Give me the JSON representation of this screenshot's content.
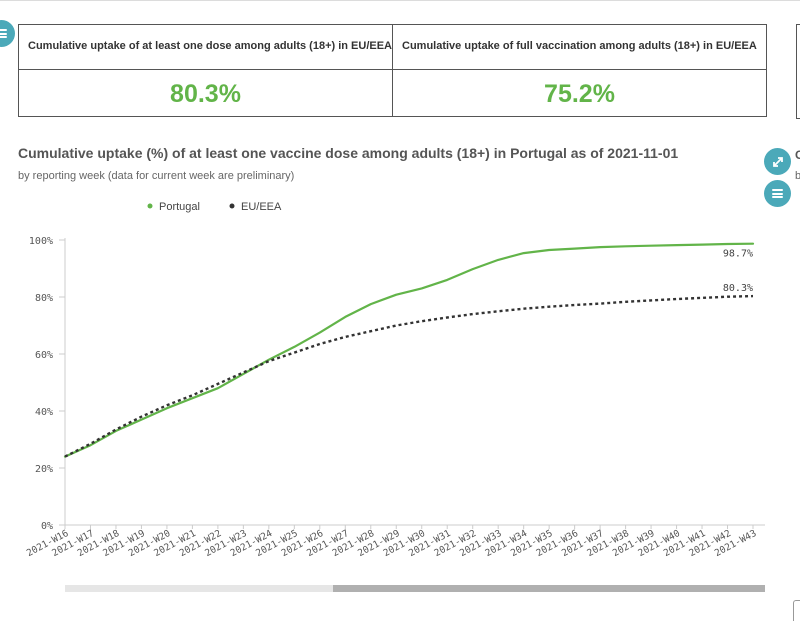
{
  "kpis": [
    {
      "label": "Cumulative uptake of at least one dose among adults (18+) in EU/EEA",
      "value": "80.3%"
    },
    {
      "label": "Cumulative uptake of full vaccination among adults (18+) in EU/EEA",
      "value": "75.2%"
    }
  ],
  "side_panel": {
    "title_fragment": "C",
    "subtitle_fragment": "b"
  },
  "icons": {
    "menu": "menu-icon",
    "expand": "expand-icon"
  },
  "colors": {
    "accent": "#4ba9b9",
    "portugal": "#62b449",
    "eu": "#333333",
    "kpi_value": "#62b449"
  },
  "chart_data": {
    "type": "line",
    "title": "Cumulative uptake (%) of at least one vaccine dose among adults (18+) in Portugal as of 2021-11-01",
    "subtitle": "by reporting week (data for current week are preliminary)",
    "x": [
      "2021-W16",
      "2021-W17",
      "2021-W18",
      "2021-W19",
      "2021-W20",
      "2021-W21",
      "2021-W22",
      "2021-W23",
      "2021-W24",
      "2021-W25",
      "2021-W26",
      "2021-W27",
      "2021-W28",
      "2021-W29",
      "2021-W30",
      "2021-W31",
      "2021-W32",
      "2021-W33",
      "2021-W34",
      "2021-W35",
      "2021-W36",
      "2021-W37",
      "2021-W38",
      "2021-W39",
      "2021-W40",
      "2021-W41",
      "2021-W42",
      "2021-W43"
    ],
    "series": [
      {
        "name": "Portugal",
        "color": "#62b449",
        "dash": "solid",
        "end_label": "98.7%",
        "values": [
          24,
          28,
          33,
          37,
          41,
          44.5,
          48,
          53,
          58,
          62.5,
          67.5,
          73,
          77.5,
          80.8,
          83,
          86,
          89.8,
          93,
          95.4,
          96.5,
          97,
          97.5,
          97.8,
          98,
          98.2,
          98.4,
          98.6,
          98.7
        ]
      },
      {
        "name": "EU/EEA",
        "color": "#333333",
        "dash": "dotted",
        "end_label": "80.3%",
        "values": [
          24,
          28.5,
          33.5,
          38,
          42,
          45.5,
          49.5,
          53.5,
          57.5,
          60.5,
          63.5,
          66,
          68,
          70,
          71.5,
          72.8,
          74,
          75,
          75.9,
          76.6,
          77.2,
          77.7,
          78.3,
          78.8,
          79.3,
          79.7,
          80.1,
          80.3
        ]
      }
    ],
    "yticks": [
      "0%",
      "20%",
      "40%",
      "60%",
      "80%",
      "100%"
    ],
    "ylim": [
      0,
      100
    ],
    "legend": "top-left",
    "grid": false
  }
}
